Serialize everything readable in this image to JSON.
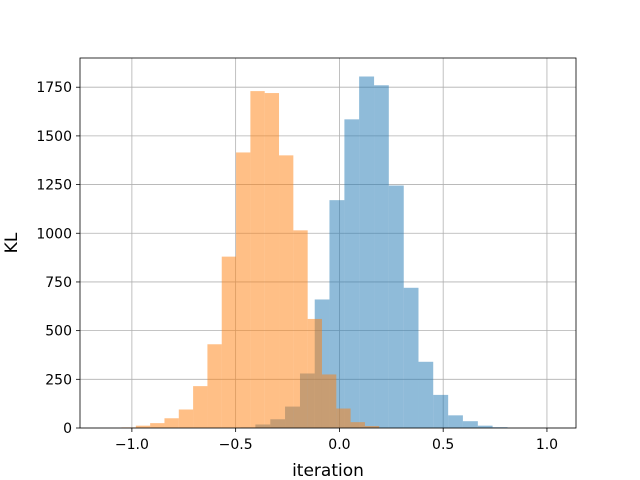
{
  "chart_data": {
    "type": "histogram",
    "title": "",
    "xlabel": "iteration",
    "ylabel": "KL",
    "xlim": [
      -1.25,
      1.14
    ],
    "ylim": [
      0,
      1900
    ],
    "xticks": [
      -1.0,
      -0.5,
      0.0,
      0.5,
      1.0
    ],
    "xtick_labels": [
      "−1.0",
      "−0.5",
      "0.0",
      "0.5",
      "1.0"
    ],
    "yticks": [
      0,
      250,
      500,
      750,
      1000,
      1250,
      1500,
      1750
    ],
    "ytick_labels": [
      "0",
      "250",
      "500",
      "750",
      "1000",
      "1250",
      "1500",
      "1750"
    ],
    "grid": true,
    "legend": null,
    "series": [
      {
        "color": "#1f77b4",
        "alpha": 0.5,
        "bin_edges": [
          -0.476,
          -0.405,
          -0.333,
          -0.262,
          -0.19,
          -0.119,
          -0.048,
          0.024,
          0.095,
          0.167,
          0.238,
          0.31,
          0.381,
          0.452,
          0.524,
          0.595,
          0.667,
          0.738,
          0.81
        ],
        "counts": [
          3,
          18,
          45,
          110,
          280,
          660,
          1170,
          1585,
          1805,
          1760,
          1245,
          720,
          340,
          170,
          65,
          35,
          12,
          4
        ]
      },
      {
        "color": "#ff7f0e",
        "alpha": 0.5,
        "bin_edges": [
          -1.05,
          -0.981,
          -0.912,
          -0.843,
          -0.774,
          -0.705,
          -0.636,
          -0.567,
          -0.498,
          -0.429,
          -0.36,
          -0.291,
          -0.222,
          -0.153,
          -0.084,
          -0.015,
          0.054,
          0.123,
          0.192
        ],
        "counts": [
          3,
          12,
          25,
          50,
          95,
          215,
          430,
          880,
          1415,
          1730,
          1720,
          1400,
          1015,
          560,
          275,
          100,
          30,
          10
        ]
      }
    ]
  }
}
